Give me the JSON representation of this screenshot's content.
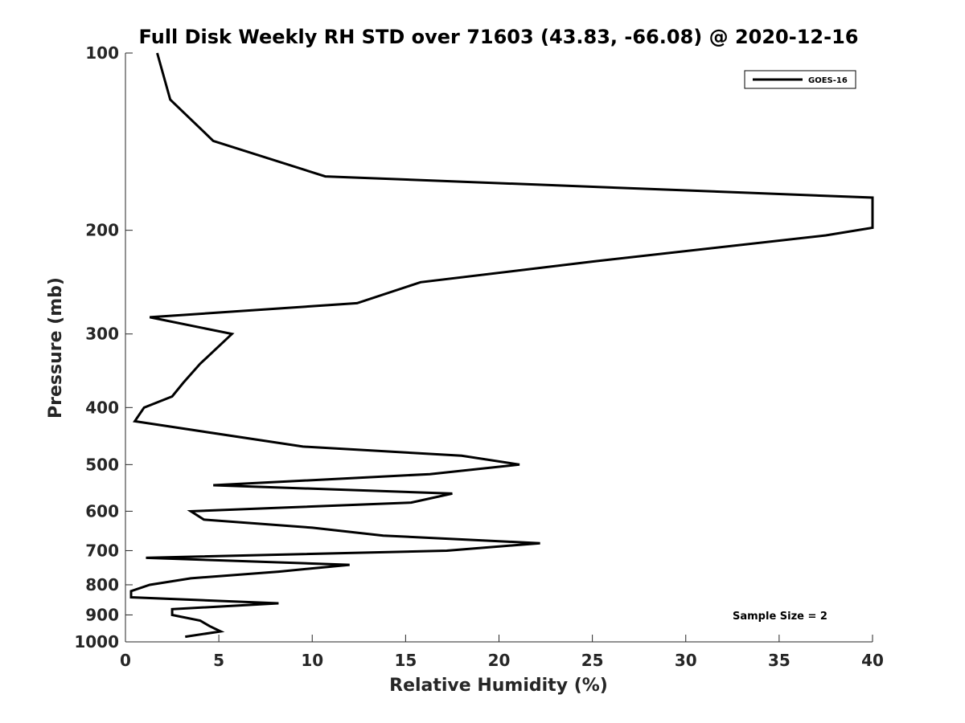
{
  "chart_data": {
    "type": "line",
    "title": "Full Disk Weekly RH STD over 71603 (43.83, -66.08) @ 2020-12-16",
    "xlabel": "Relative Humidity (%)",
    "ylabel": "Pressure (mb)",
    "xlim": [
      0,
      40
    ],
    "ylim": [
      100,
      1000
    ],
    "yscale": "log",
    "yaxis_inverted": true,
    "grid": false,
    "xticks": [
      0,
      5,
      10,
      15,
      20,
      25,
      30,
      35,
      40
    ],
    "yticks": [
      100,
      200,
      300,
      400,
      500,
      600,
      700,
      800,
      900,
      1000
    ],
    "legend": {
      "location": "top-right",
      "entries": [
        "GOES-16"
      ]
    },
    "annotation": "Sample Size = 2",
    "series": [
      {
        "name": "GOES-16",
        "color": "#000000",
        "x": [
          1.7,
          2.4,
          4.7,
          10.7,
          40,
          40,
          37.5,
          25,
          15.8,
          12.4,
          1.3,
          5.7,
          4,
          3.1,
          2.5,
          1,
          0.5,
          9.5,
          18,
          21.1,
          16.3,
          4.7,
          17.5,
          15.3,
          3.5,
          4.2,
          10,
          13.8,
          22.2,
          17.2,
          1.1,
          12,
          8.2,
          3.5,
          1.3,
          0.3,
          0.3,
          8.2,
          2.5,
          2.5,
          4,
          4.5,
          5.1,
          3.2
        ],
        "y": [
          100,
          120,
          141,
          162,
          176,
          198,
          204,
          226,
          245,
          266,
          281,
          300,
          337,
          363,
          383,
          400,
          422,
          466,
          483,
          500,
          519,
          542,
          560,
          580,
          600,
          620,
          640,
          660,
          680,
          700,
          720,
          740,
          760,
          780,
          800,
          820,
          840,
          860,
          880,
          900,
          920,
          940,
          960,
          980
        ]
      }
    ]
  }
}
